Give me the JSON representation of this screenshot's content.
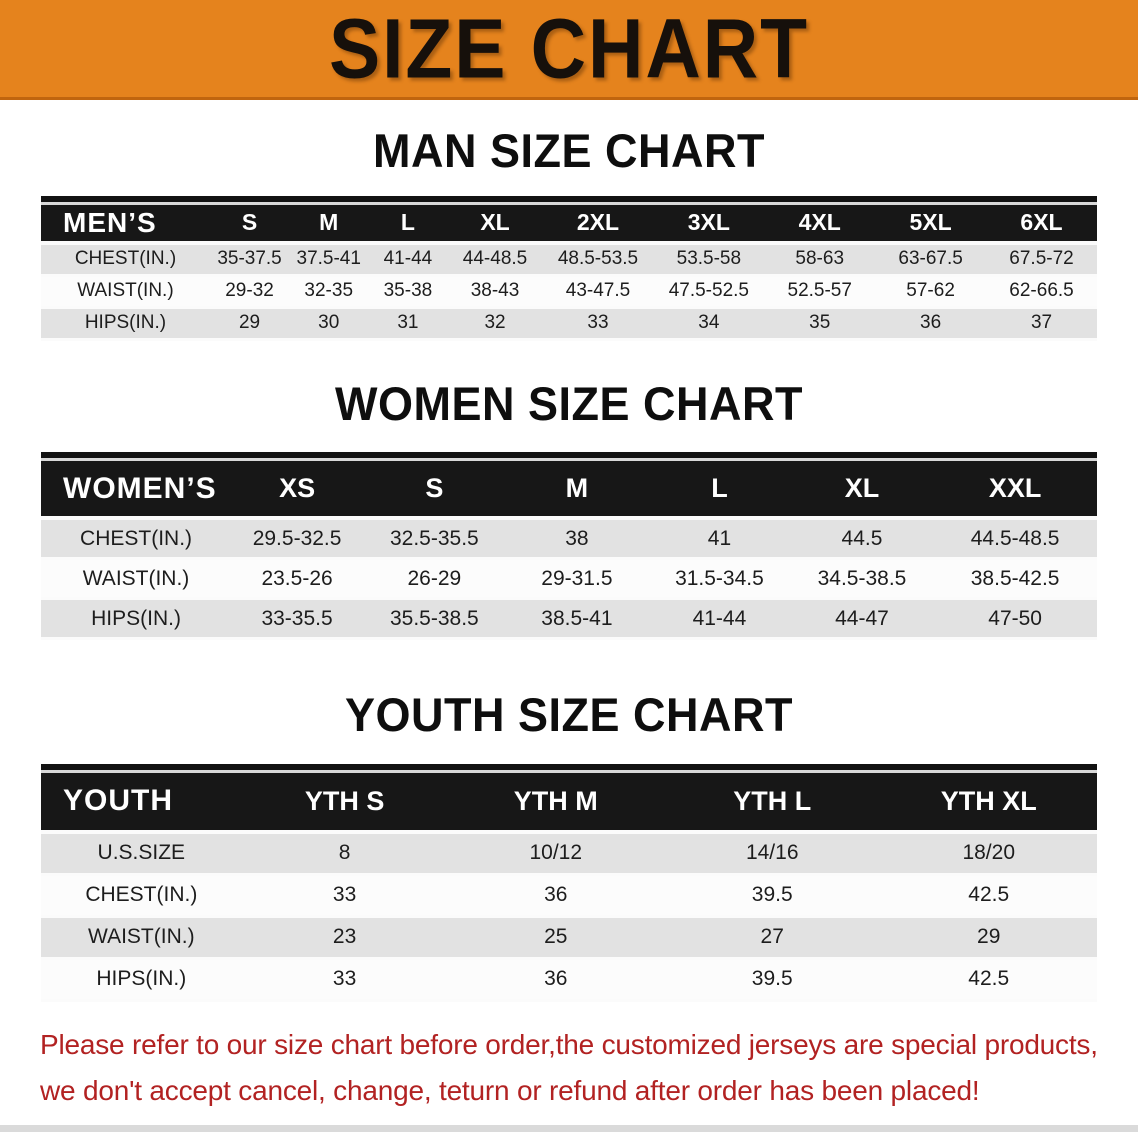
{
  "banner": {
    "title": "SIZE CHART"
  },
  "colors": {
    "banner_bg": "#E5831D",
    "band_black": "#171717",
    "row_gray": "#E2E2E2",
    "disclaimer_red": "#B22222"
  },
  "sections": [
    {
      "heading": "MAN SIZE CHART",
      "group_label": "MEN’S",
      "columns": [
        "S",
        "M",
        "L",
        "XL",
        "2XL",
        "3XL",
        "4XL",
        "5XL",
        "6XL"
      ],
      "rows": [
        {
          "label": "CHEST(IN.)",
          "values": [
            "35-37.5",
            "37.5-41",
            "41-44",
            "44-48.5",
            "48.5-53.5",
            "53.5-58",
            "58-63",
            "63-67.5",
            "67.5-72"
          ]
        },
        {
          "label": "WAIST(IN.)",
          "values": [
            "29-32",
            "32-35",
            "35-38",
            "38-43",
            "43-47.5",
            "47.5-52.5",
            "52.5-57",
            "57-62",
            "62-66.5"
          ]
        },
        {
          "label": "HIPS(IN.)",
          "values": [
            "29",
            "30",
            "31",
            "32",
            "33",
            "34",
            "35",
            "36",
            "37"
          ]
        }
      ]
    },
    {
      "heading": "WOMEN SIZE CHART",
      "group_label": "WOMEN’S",
      "columns": [
        "XS",
        "S",
        "M",
        "L",
        "XL",
        "XXL"
      ],
      "rows": [
        {
          "label": "CHEST(IN.)",
          "values": [
            "29.5-32.5",
            "32.5-35.5",
            "38",
            "41",
            "44.5",
            "44.5-48.5"
          ]
        },
        {
          "label": "WAIST(IN.)",
          "values": [
            "23.5-26",
            "26-29",
            "29-31.5",
            "31.5-34.5",
            "34.5-38.5",
            "38.5-42.5"
          ]
        },
        {
          "label": "HIPS(IN.)",
          "values": [
            "33-35.5",
            "35.5-38.5",
            "38.5-41",
            "41-44",
            "44-47",
            "47-50"
          ]
        }
      ]
    },
    {
      "heading": "YOUTH SIZE CHART",
      "group_label": "YOUTH",
      "columns": [
        "YTH S",
        "YTH M",
        "YTH L",
        "YTH XL"
      ],
      "rows": [
        {
          "label": "U.S.SIZE",
          "values": [
            "8",
            "10/12",
            "14/16",
            "18/20"
          ]
        },
        {
          "label": "CHEST(IN.)",
          "values": [
            "33",
            "36",
            "39.5",
            "42.5"
          ]
        },
        {
          "label": "WAIST(IN.)",
          "values": [
            "23",
            "25",
            "27",
            "29"
          ]
        },
        {
          "label": "HIPS(IN.)",
          "values": [
            "33",
            "36",
            "39.5",
            "42.5"
          ]
        }
      ]
    }
  ],
  "disclaimer": {
    "lines": [
      "Please refer to our size chart before order,the customized jerseys are special products,",
      "we don't accept cancel, change, teturn or refund after order has been placed!"
    ]
  }
}
